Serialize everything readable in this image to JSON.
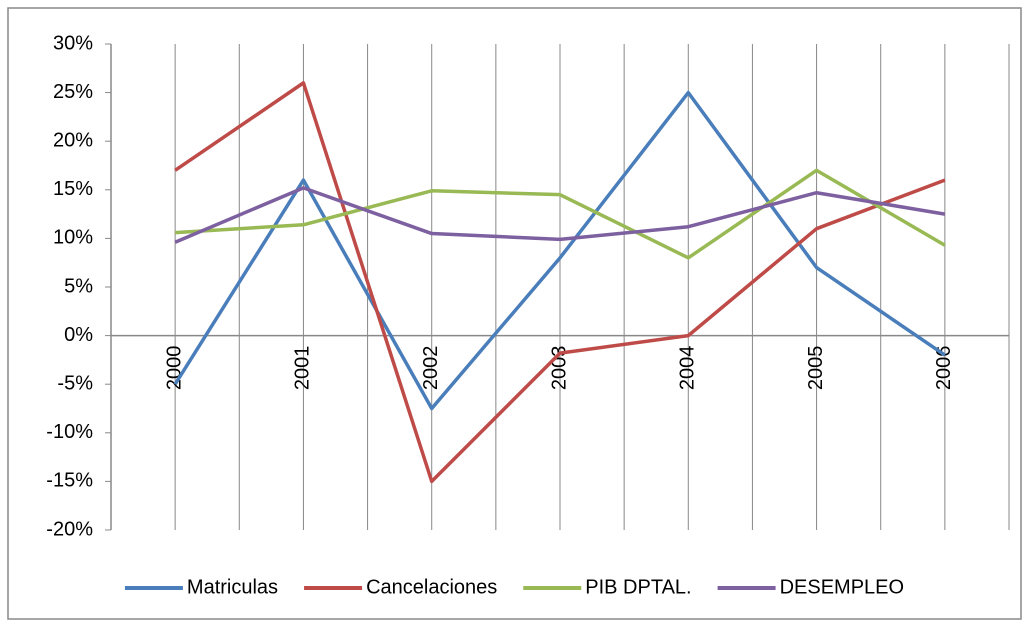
{
  "chart_data": {
    "type": "line",
    "categories": [
      "2000",
      "2001",
      "2002",
      "2003",
      "2004",
      "2005",
      "2006"
    ],
    "series": [
      {
        "name": "Matriculas",
        "color": "#4a7ebb",
        "values": [
          -5,
          16,
          -7.5,
          8,
          25,
          7,
          -2
        ]
      },
      {
        "name": "Cancelaciones",
        "color": "#be4b48",
        "values": [
          17,
          26,
          -15,
          -1.8,
          0,
          11,
          16
        ]
      },
      {
        "name": "PIB DPTAL.",
        "color": "#98b954",
        "values": [
          10.6,
          11.4,
          14.9,
          14.5,
          8,
          17,
          9.3
        ]
      },
      {
        "name": "DESEMPLEO",
        "color": "#7d60a0",
        "values": [
          9.6,
          15.2,
          10.5,
          9.9,
          11.2,
          14.7,
          12.5
        ]
      }
    ],
    "ylim": [
      -20,
      30
    ],
    "yticks": [
      {
        "value": -20,
        "label": "-20%"
      },
      {
        "value": -15,
        "label": "-15%"
      },
      {
        "value": -10,
        "label": "-10%"
      },
      {
        "value": -5,
        "label": "-5%"
      },
      {
        "value": 0,
        "label": "0%"
      },
      {
        "value": 5,
        "label": "5%"
      },
      {
        "value": 10,
        "label": "10%"
      },
      {
        "value": 15,
        "label": "15%"
      },
      {
        "value": 20,
        "label": "20%"
      },
      {
        "value": 25,
        "label": "25%"
      },
      {
        "value": 30,
        "label": "30%"
      }
    ],
    "grid": true,
    "legend": "bottom"
  }
}
